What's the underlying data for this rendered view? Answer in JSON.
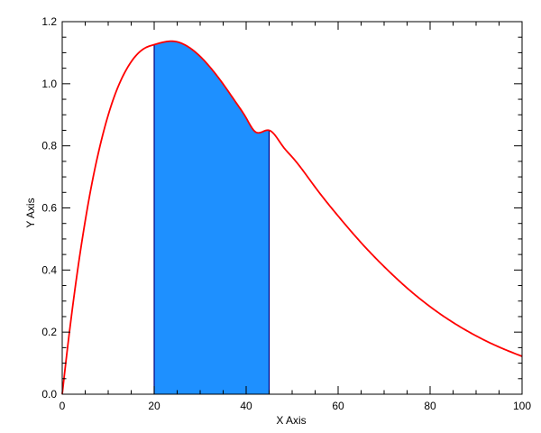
{
  "chart_data": {
    "type": "area",
    "title": "",
    "xlabel": "X Axis",
    "ylabel": "Y Axis",
    "xlim": [
      0,
      100
    ],
    "ylim": [
      0,
      1.2
    ],
    "x_ticks": [
      0,
      20,
      40,
      60,
      80,
      100
    ],
    "x_tick_labels": [
      "0",
      "20",
      "40",
      "60",
      "80",
      "100"
    ],
    "y_ticks": [
      0,
      0.2,
      0.4,
      0.6,
      0.8,
      1.0,
      1.2
    ],
    "y_tick_labels": [
      "0.0",
      "0.2",
      "0.4",
      "0.6",
      "0.8",
      "1.0",
      "1.2"
    ],
    "grid": false,
    "series": [
      {
        "x": [
          0,
          1,
          2,
          3,
          4,
          5,
          6,
          8,
          10,
          12,
          14,
          16,
          18,
          20,
          22,
          24,
          26,
          28,
          30,
          32,
          34,
          36,
          38,
          40,
          42,
          45,
          48,
          50,
          55,
          60,
          65,
          70,
          75,
          80,
          85,
          90,
          95,
          100
        ],
        "y": [
          0,
          0.13,
          0.251,
          0.363,
          0.465,
          0.558,
          0.643,
          0.786,
          0.899,
          0.985,
          1.047,
          1.09,
          1.115,
          1.126,
          1.134,
          1.137,
          1.13,
          1.113,
          1.088,
          1.056,
          1.019,
          0.978,
          0.935,
          0.89,
          0.845,
          0.85,
          0.798,
          0.764,
          0.667,
          0.574,
          0.488,
          0.411,
          0.342,
          0.282,
          0.231,
          0.188,
          0.152,
          0.122
        ],
        "color": "#ff0000"
      }
    ],
    "shaded_region": {
      "x_start": 20,
      "x_end": 45,
      "fill": "#1e90ff",
      "edge": "#000080"
    }
  }
}
